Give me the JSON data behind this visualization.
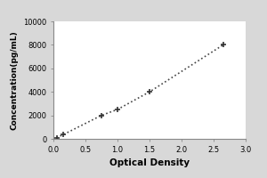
{
  "x_data": [
    0.05,
    0.15,
    0.75,
    1.0,
    1.5,
    2.65
  ],
  "y_data": [
    100,
    350,
    2000,
    2500,
    4000,
    8000
  ],
  "xlabel": "Optical Density",
  "ylabel": "Concentration(pg/mL)",
  "xlim": [
    0,
    3
  ],
  "ylim": [
    0,
    10000
  ],
  "xticks": [
    0,
    0.5,
    1,
    1.5,
    2,
    2.5,
    3
  ],
  "yticks": [
    0,
    2000,
    4000,
    6000,
    8000,
    10000
  ],
  "line_color": "#444444",
  "marker_color": "#333333",
  "marker": "+",
  "linestyle": "dotted",
  "linewidth": 1.2,
  "markersize": 5,
  "markeredgewidth": 1.2,
  "bg_color": "#d8d8d8",
  "plot_bg_color": "#ffffff",
  "xlabel_fontsize": 7.5,
  "ylabel_fontsize": 6.5,
  "tick_fontsize": 6,
  "label_fontweight": "bold"
}
